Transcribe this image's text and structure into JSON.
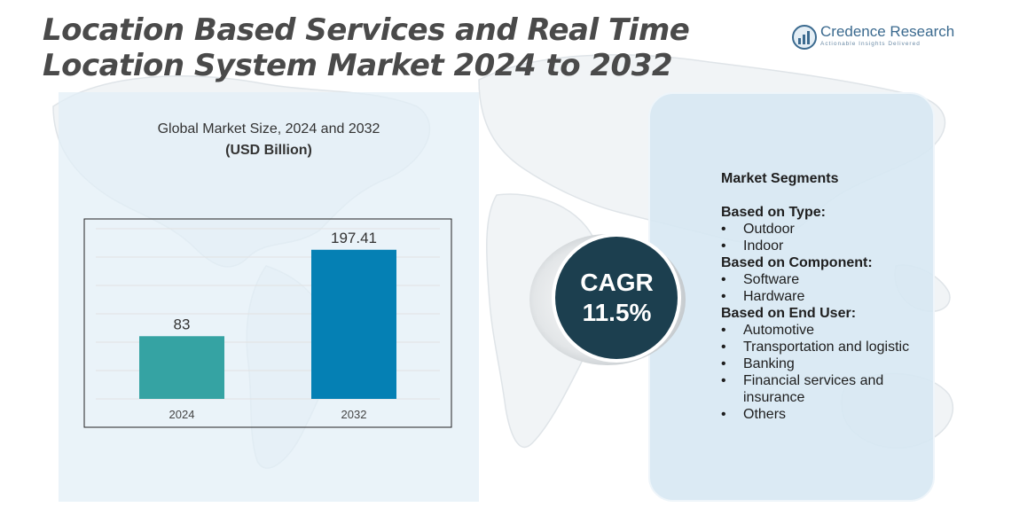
{
  "title": "Location Based Services and Real Time Location System Market 2024 to 2032",
  "logo": {
    "name": "Credence Research",
    "tagline": "Actionable Insights Delivered",
    "icon": "bar-growth-icon"
  },
  "chart_heading": {
    "line1": "Global Market Size,  2024 and 2032",
    "line2": "(USD Billion)"
  },
  "chart_data": {
    "type": "bar",
    "categories": [
      "2024",
      "2032"
    ],
    "values": [
      83,
      197.41
    ],
    "value_labels": [
      "83",
      "197.41"
    ],
    "ylim": [
      0,
      230
    ],
    "grid": true,
    "colors": [
      "#35a3a3",
      "#0580b4"
    ]
  },
  "cagr": {
    "label": "CAGR",
    "value": "11.5%"
  },
  "segments": {
    "title": "Market Segments",
    "groups": [
      {
        "title": "Based on Type:",
        "items": [
          "Outdoor",
          "Indoor"
        ]
      },
      {
        "title": "Based on Component:",
        "items": [
          "Software",
          "Hardware"
        ]
      },
      {
        "title": "Based on End User:",
        "items": [
          "Automotive",
          "Transportation and logistic",
          "Banking",
          "Financial services and insurance",
          "Others"
        ]
      }
    ]
  }
}
